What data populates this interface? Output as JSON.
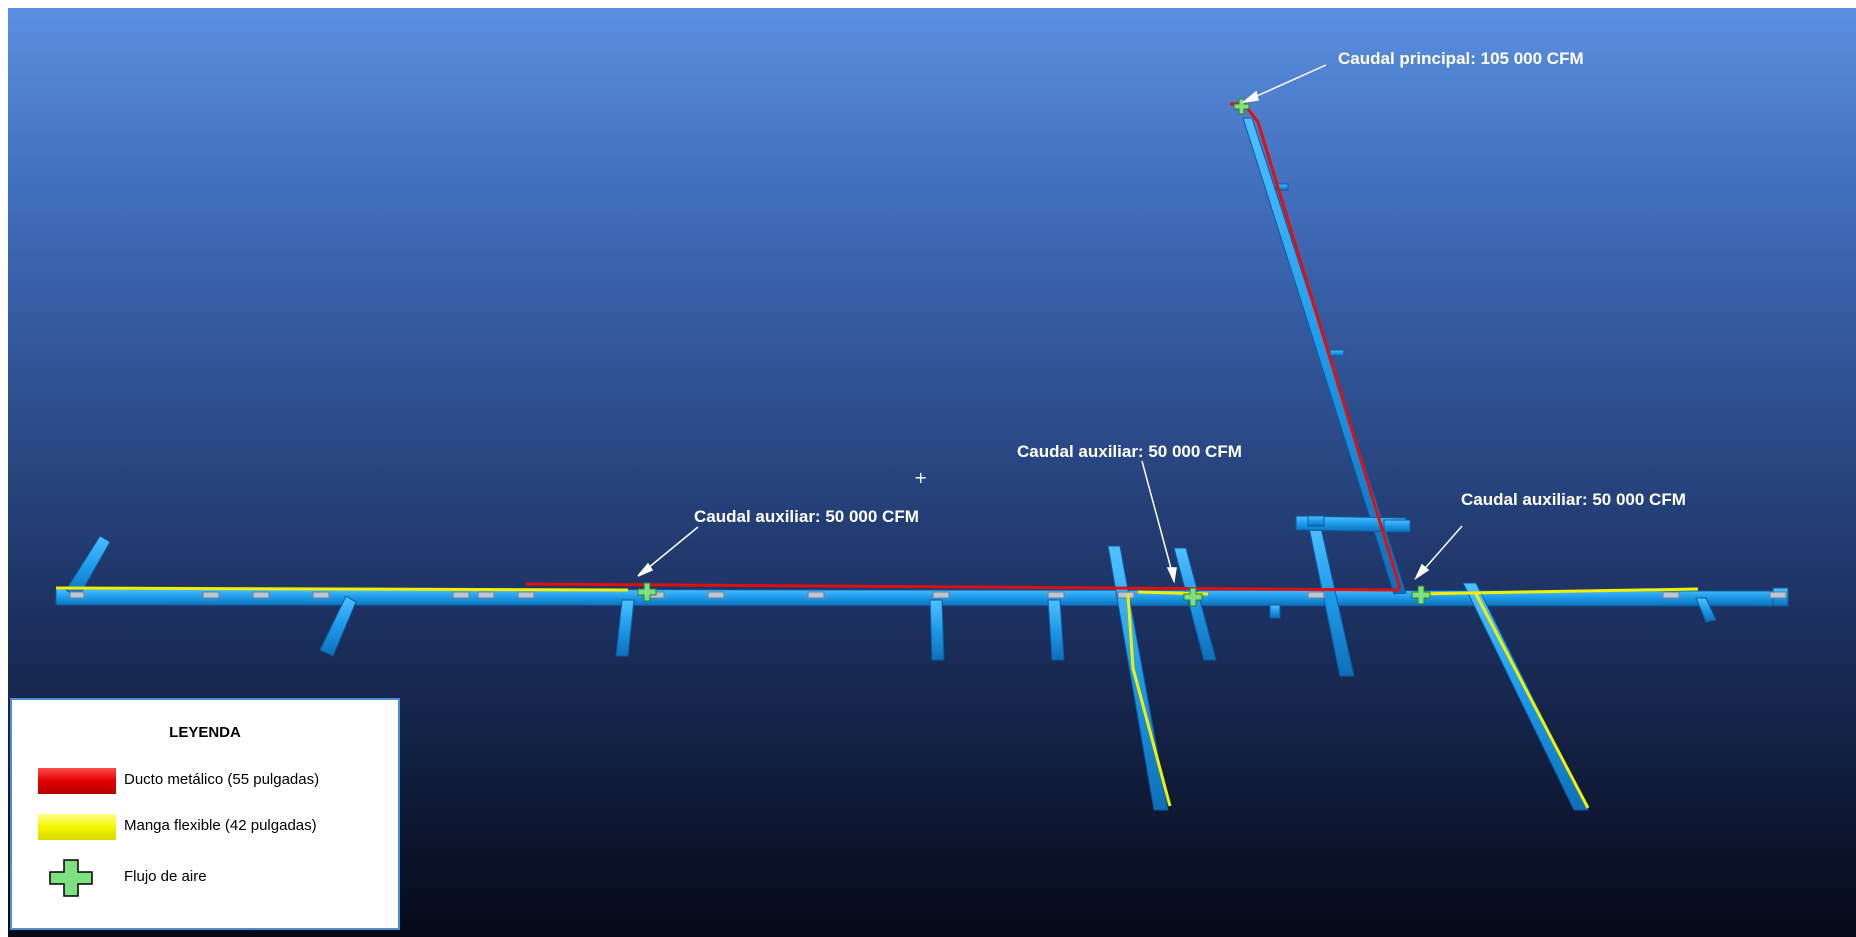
{
  "callouts": {
    "main": "Caudal principal: 105 000 CFM",
    "aux_left": "Caudal auxiliar: 50 000 CFM",
    "aux_center": "Caudal auxiliar: 50 000 CFM",
    "aux_right": "Caudal auxiliar: 50 000 CFM"
  },
  "legend": {
    "title": "LEYENDA",
    "items": [
      {
        "label": "Ducto metálico (55 pulgadas)",
        "swatch": "red-duct"
      },
      {
        "label": "Manga flexible (42 pulgadas)",
        "swatch": "yellow-hose"
      },
      {
        "label": "Flujo de aire",
        "swatch": "green-plus-icon"
      }
    ]
  },
  "colors": {
    "tunnel": "#1ea0f0",
    "metal_duct": "#e01010",
    "flexible_hose": "#f0f000",
    "airflow": "#7ee07e",
    "legend_border": "#4a8fd6"
  }
}
